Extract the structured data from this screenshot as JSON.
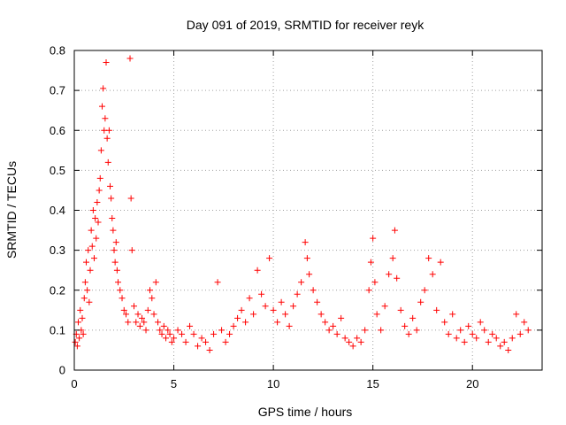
{
  "chart_data": {
    "type": "scatter",
    "title": "Day 091 of 2019, SRMTID for receiver reyk",
    "xlabel": "GPS time / hours",
    "ylabel": "SRMTID / TECUs",
    "xlim": [
      0,
      23.5
    ],
    "ylim": [
      0,
      0.8
    ],
    "x_ticks": [
      0,
      5,
      10,
      15,
      20
    ],
    "x_tick_labels": [
      "0",
      "5",
      "10",
      "15",
      "20"
    ],
    "y_ticks": [
      0,
      0.1,
      0.2,
      0.3,
      0.4,
      0.5,
      0.6,
      0.7,
      0.8
    ],
    "y_tick_labels": [
      "0",
      "0.1",
      "0.2",
      "0.3",
      "0.4",
      "0.5",
      "0.6",
      "0.7",
      "0.8"
    ],
    "grid": true,
    "marker": "+",
    "marker_color": "#ff0000",
    "series": [
      {
        "name": "SRMTID",
        "points": [
          [
            0.05,
            0.07
          ],
          [
            0.1,
            0.09
          ],
          [
            0.15,
            0.06
          ],
          [
            0.2,
            0.12
          ],
          [
            0.25,
            0.08
          ],
          [
            0.3,
            0.15
          ],
          [
            0.35,
            0.1
          ],
          [
            0.4,
            0.13
          ],
          [
            0.45,
            0.09
          ],
          [
            0.5,
            0.18
          ],
          [
            0.55,
            0.22
          ],
          [
            0.6,
            0.27
          ],
          [
            0.65,
            0.2
          ],
          [
            0.7,
            0.3
          ],
          [
            0.75,
            0.17
          ],
          [
            0.8,
            0.25
          ],
          [
            0.85,
            0.35
          ],
          [
            0.9,
            0.31
          ],
          [
            0.95,
            0.4
          ],
          [
            1.0,
            0.28
          ],
          [
            1.05,
            0.38
          ],
          [
            1.1,
            0.33
          ],
          [
            1.15,
            0.42
          ],
          [
            1.2,
            0.37
          ],
          [
            1.25,
            0.45
          ],
          [
            1.3,
            0.48
          ],
          [
            1.35,
            0.55
          ],
          [
            1.4,
            0.66
          ],
          [
            1.45,
            0.705
          ],
          [
            1.5,
            0.6
          ],
          [
            1.55,
            0.63
          ],
          [
            1.6,
            0.77
          ],
          [
            1.65,
            0.58
          ],
          [
            1.7,
            0.52
          ],
          [
            1.75,
            0.6
          ],
          [
            1.8,
            0.46
          ],
          [
            1.85,
            0.43
          ],
          [
            1.9,
            0.38
          ],
          [
            1.95,
            0.35
          ],
          [
            2.0,
            0.3
          ],
          [
            2.05,
            0.27
          ],
          [
            2.1,
            0.32
          ],
          [
            2.15,
            0.25
          ],
          [
            2.2,
            0.22
          ],
          [
            2.3,
            0.2
          ],
          [
            2.4,
            0.18
          ],
          [
            2.5,
            0.15
          ],
          [
            2.6,
            0.14
          ],
          [
            2.7,
            0.12
          ],
          [
            2.8,
            0.78
          ],
          [
            2.85,
            0.43
          ],
          [
            2.9,
            0.3
          ],
          [
            3.0,
            0.16
          ],
          [
            3.1,
            0.12
          ],
          [
            3.2,
            0.14
          ],
          [
            3.3,
            0.11
          ],
          [
            3.4,
            0.13
          ],
          [
            3.5,
            0.12
          ],
          [
            3.6,
            0.1
          ],
          [
            3.7,
            0.15
          ],
          [
            3.8,
            0.2
          ],
          [
            3.9,
            0.18
          ],
          [
            4.0,
            0.14
          ],
          [
            4.1,
            0.22
          ],
          [
            4.2,
            0.12
          ],
          [
            4.3,
            0.1
          ],
          [
            4.4,
            0.09
          ],
          [
            4.5,
            0.11
          ],
          [
            4.6,
            0.08
          ],
          [
            4.7,
            0.1
          ],
          [
            4.8,
            0.09
          ],
          [
            4.9,
            0.07
          ],
          [
            5.0,
            0.08
          ],
          [
            5.2,
            0.1
          ],
          [
            5.4,
            0.09
          ],
          [
            5.6,
            0.07
          ],
          [
            5.8,
            0.11
          ],
          [
            6.0,
            0.09
          ],
          [
            6.2,
            0.06
          ],
          [
            6.4,
            0.08
          ],
          [
            6.6,
            0.07
          ],
          [
            6.8,
            0.05
          ],
          [
            7.0,
            0.09
          ],
          [
            7.2,
            0.22
          ],
          [
            7.4,
            0.1
          ],
          [
            7.6,
            0.07
          ],
          [
            7.8,
            0.09
          ],
          [
            8.0,
            0.11
          ],
          [
            8.2,
            0.13
          ],
          [
            8.4,
            0.15
          ],
          [
            8.6,
            0.12
          ],
          [
            8.8,
            0.18
          ],
          [
            9.0,
            0.14
          ],
          [
            9.2,
            0.25
          ],
          [
            9.4,
            0.19
          ],
          [
            9.6,
            0.16
          ],
          [
            9.8,
            0.28
          ],
          [
            10.0,
            0.15
          ],
          [
            10.2,
            0.12
          ],
          [
            10.4,
            0.17
          ],
          [
            10.6,
            0.14
          ],
          [
            10.8,
            0.11
          ],
          [
            11.0,
            0.16
          ],
          [
            11.2,
            0.19
          ],
          [
            11.4,
            0.22
          ],
          [
            11.6,
            0.32
          ],
          [
            11.7,
            0.28
          ],
          [
            11.8,
            0.24
          ],
          [
            12.0,
            0.2
          ],
          [
            12.2,
            0.17
          ],
          [
            12.4,
            0.14
          ],
          [
            12.6,
            0.12
          ],
          [
            12.8,
            0.1
          ],
          [
            13.0,
            0.11
          ],
          [
            13.2,
            0.09
          ],
          [
            13.4,
            0.13
          ],
          [
            13.6,
            0.08
          ],
          [
            13.8,
            0.07
          ],
          [
            14.0,
            0.06
          ],
          [
            14.2,
            0.08
          ],
          [
            14.4,
            0.07
          ],
          [
            14.6,
            0.1
          ],
          [
            14.8,
            0.2
          ],
          [
            14.9,
            0.27
          ],
          [
            15.0,
            0.33
          ],
          [
            15.1,
            0.22
          ],
          [
            15.2,
            0.14
          ],
          [
            15.4,
            0.1
          ],
          [
            15.6,
            0.16
          ],
          [
            15.8,
            0.24
          ],
          [
            16.0,
            0.28
          ],
          [
            16.1,
            0.35
          ],
          [
            16.2,
            0.23
          ],
          [
            16.4,
            0.15
          ],
          [
            16.6,
            0.11
          ],
          [
            16.8,
            0.09
          ],
          [
            17.0,
            0.13
          ],
          [
            17.2,
            0.1
          ],
          [
            17.4,
            0.17
          ],
          [
            17.6,
            0.2
          ],
          [
            17.8,
            0.28
          ],
          [
            18.0,
            0.24
          ],
          [
            18.2,
            0.15
          ],
          [
            18.4,
            0.27
          ],
          [
            18.6,
            0.12
          ],
          [
            18.8,
            0.09
          ],
          [
            19.0,
            0.14
          ],
          [
            19.2,
            0.08
          ],
          [
            19.4,
            0.1
          ],
          [
            19.6,
            0.07
          ],
          [
            19.8,
            0.11
          ],
          [
            20.0,
            0.09
          ],
          [
            20.2,
            0.08
          ],
          [
            20.4,
            0.12
          ],
          [
            20.6,
            0.1
          ],
          [
            20.8,
            0.07
          ],
          [
            21.0,
            0.09
          ],
          [
            21.2,
            0.08
          ],
          [
            21.4,
            0.06
          ],
          [
            21.6,
            0.07
          ],
          [
            21.8,
            0.05
          ],
          [
            22.0,
            0.08
          ],
          [
            22.2,
            0.14
          ],
          [
            22.4,
            0.09
          ],
          [
            22.6,
            0.12
          ],
          [
            22.8,
            0.1
          ]
        ]
      }
    ]
  }
}
